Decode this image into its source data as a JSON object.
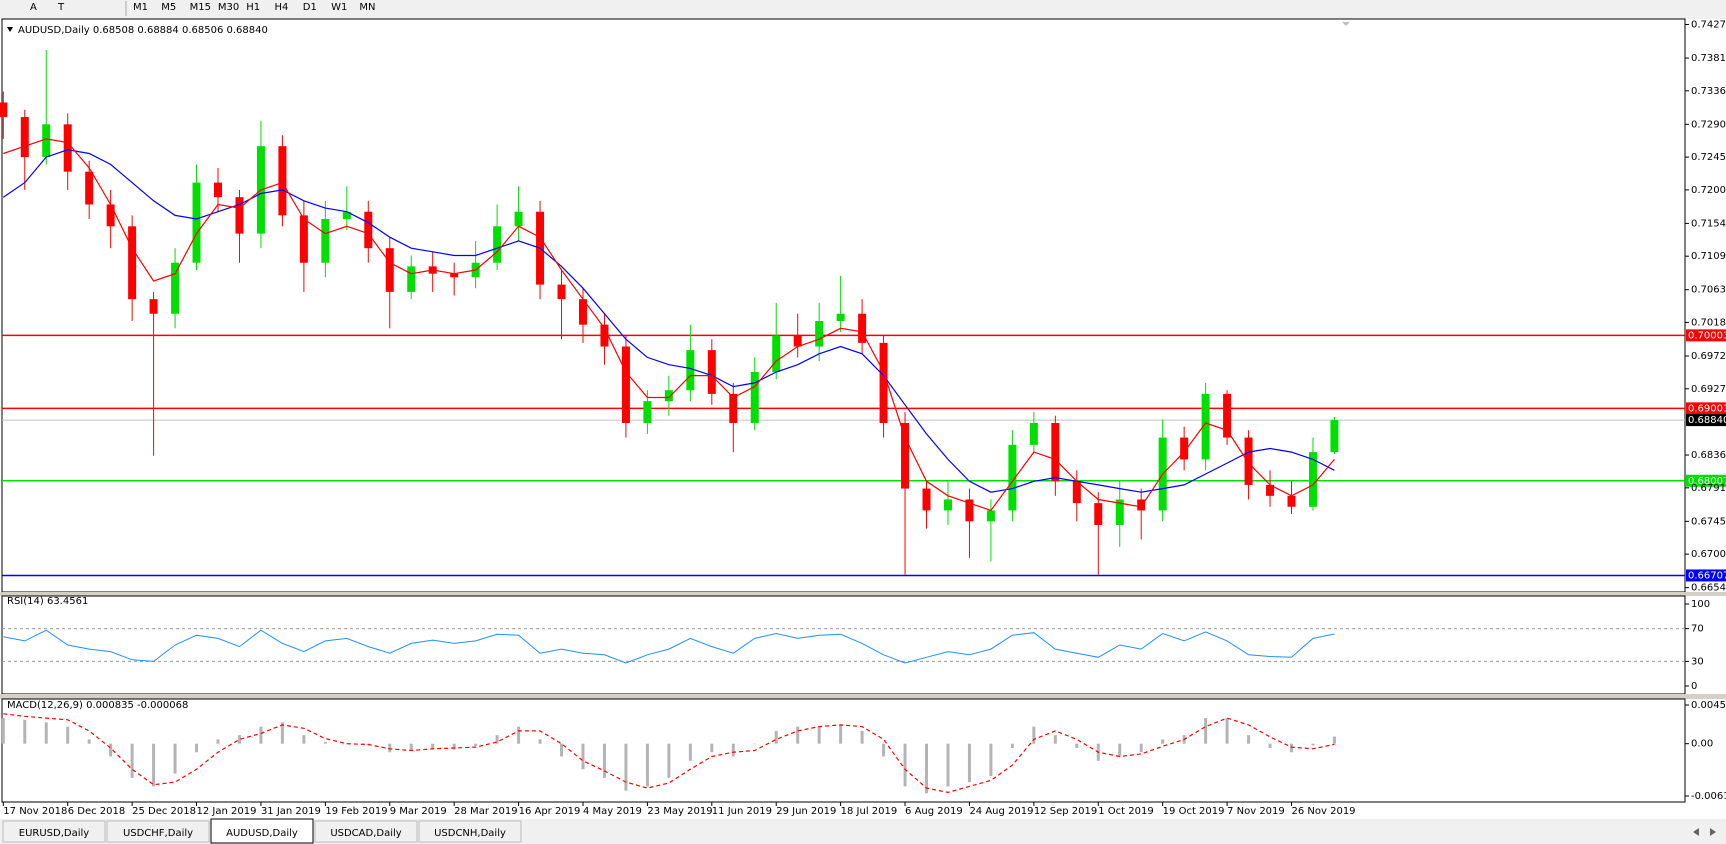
{
  "toolbar": {
    "tools": [
      "A",
      "T"
    ],
    "timeframes": [
      "M1",
      "M5",
      "M15",
      "M30",
      "H1",
      "H4",
      "D1",
      "W1",
      "MN"
    ]
  },
  "tabs": [
    "EURUSD,Daily",
    "USDCHF,Daily",
    "AUDUSD,Daily",
    "USDCAD,Daily",
    "USDCNH,Daily"
  ],
  "active_tab": 2,
  "chart_data": [
    {
      "type": "candlestick",
      "title": "AUDUSD,Daily  0.68508 0.68884 0.68506 0.68840",
      "categories": [
        "17 Nov 2018",
        null,
        null,
        "6 Dec 2018",
        null,
        null,
        "25 Dec 2018",
        null,
        null,
        "12 Jan 2019",
        null,
        null,
        "31 Jan 2019",
        null,
        null,
        "19 Feb 2019",
        null,
        null,
        "9 Mar 2019",
        null,
        null,
        "28 Mar 2019",
        null,
        null,
        "16 Apr 2019",
        null,
        null,
        "4 May 2019",
        null,
        null,
        "23 May 2019",
        null,
        null,
        "11 Jun 2019",
        null,
        null,
        "29 Jun 2019",
        null,
        null,
        "18 Jul 2019",
        null,
        null,
        "6 Aug 2019",
        null,
        null,
        "24 Aug 2019",
        null,
        null,
        "12 Sep 2019",
        null,
        null,
        "1 Oct 2019",
        null,
        null,
        "19 Oct 2019",
        null,
        null,
        "7 Nov 2019",
        null,
        null,
        "26 Nov 2019",
        null,
        null
      ],
      "open": [
        0.732,
        0.73,
        0.7245,
        0.729,
        0.7225,
        0.718,
        0.715,
        0.705,
        0.703,
        0.71,
        0.721,
        0.719,
        0.714,
        0.726,
        0.7165,
        0.71,
        0.716,
        0.717,
        0.712,
        0.706,
        0.7095,
        0.7085,
        0.708,
        0.71,
        0.715,
        0.717,
        0.707,
        0.705,
        0.7015,
        0.6985,
        0.688,
        0.691,
        0.6925,
        0.698,
        0.692,
        0.688,
        0.695,
        0.7,
        0.6985,
        0.702,
        0.703,
        0.699,
        0.688,
        0.679,
        0.676,
        0.6775,
        0.6745,
        0.676,
        0.685,
        0.688,
        0.68,
        0.677,
        0.674,
        0.6775,
        0.676,
        0.686,
        0.683,
        0.692,
        0.686,
        0.6795,
        0.678,
        0.6765,
        0.684
      ],
      "high": [
        0.7335,
        0.731,
        0.7392,
        0.7305,
        0.724,
        0.72,
        0.7165,
        0.706,
        0.712,
        0.7235,
        0.723,
        0.72,
        0.7295,
        0.7275,
        0.7185,
        0.7185,
        0.7205,
        0.7185,
        0.7135,
        0.711,
        0.7115,
        0.71,
        0.713,
        0.718,
        0.7205,
        0.7185,
        0.709,
        0.7065,
        0.703,
        0.7,
        0.6925,
        0.6945,
        0.7015,
        0.6995,
        0.6935,
        0.697,
        0.7045,
        0.703,
        0.7045,
        0.7082,
        0.705,
        0.7,
        0.6895,
        0.68,
        0.68,
        0.679,
        0.6775,
        0.687,
        0.6895,
        0.689,
        0.6815,
        0.6785,
        0.68,
        0.679,
        0.6885,
        0.6875,
        0.6935,
        0.6925,
        0.687,
        0.6815,
        0.68,
        0.686,
        0.68884
      ],
      "low": [
        0.727,
        0.72,
        0.7235,
        0.72,
        0.716,
        0.712,
        0.702,
        0.6835,
        0.701,
        0.709,
        0.717,
        0.71,
        0.712,
        0.715,
        0.706,
        0.708,
        0.7145,
        0.71,
        0.701,
        0.705,
        0.706,
        0.7055,
        0.7065,
        0.709,
        0.713,
        0.705,
        0.6995,
        0.699,
        0.696,
        0.686,
        0.6865,
        0.689,
        0.691,
        0.6905,
        0.684,
        0.687,
        0.694,
        0.697,
        0.6965,
        0.7005,
        0.6975,
        0.686,
        0.6672,
        0.6735,
        0.674,
        0.6695,
        0.669,
        0.6745,
        0.684,
        0.678,
        0.6745,
        0.6672,
        0.671,
        0.672,
        0.6745,
        0.6815,
        0.6815,
        0.685,
        0.6775,
        0.6765,
        0.6755,
        0.676,
        0.68375
      ],
      "close": [
        0.73,
        0.7245,
        0.729,
        0.7225,
        0.718,
        0.715,
        0.705,
        0.703,
        0.71,
        0.721,
        0.719,
        0.714,
        0.726,
        0.7165,
        0.71,
        0.716,
        0.717,
        0.712,
        0.706,
        0.7095,
        0.7085,
        0.708,
        0.71,
        0.715,
        0.717,
        0.707,
        0.705,
        0.7015,
        0.6985,
        0.688,
        0.691,
        0.6925,
        0.698,
        0.692,
        0.688,
        0.695,
        0.7,
        0.6985,
        0.702,
        0.703,
        0.699,
        0.688,
        0.679,
        0.676,
        0.6775,
        0.6745,
        0.676,
        0.685,
        0.688,
        0.68,
        0.677,
        0.674,
        0.6775,
        0.676,
        0.686,
        0.683,
        0.692,
        0.686,
        0.6795,
        0.678,
        0.6765,
        0.684,
        0.6884
      ],
      "up_color": "#00e000",
      "down_color": "#ff0000",
      "overlays": [
        {
          "color": "#0000ff",
          "values": [
            0.719,
            0.721,
            0.7245,
            0.7255,
            0.725,
            0.7235,
            0.721,
            0.7185,
            0.7165,
            0.716,
            0.717,
            0.718,
            0.7195,
            0.72,
            0.7185,
            0.7175,
            0.717,
            0.7155,
            0.7135,
            0.712,
            0.7115,
            0.711,
            0.711,
            0.712,
            0.713,
            0.712,
            0.7095,
            0.7065,
            0.703,
            0.6995,
            0.697,
            0.696,
            0.6955,
            0.6945,
            0.693,
            0.6935,
            0.695,
            0.696,
            0.6975,
            0.6985,
            0.6975,
            0.6945,
            0.6905,
            0.6865,
            0.683,
            0.68,
            0.6785,
            0.679,
            0.68,
            0.6805,
            0.68,
            0.6795,
            0.679,
            0.6785,
            0.679,
            0.6795,
            0.681,
            0.6825,
            0.684,
            0.6845,
            0.684,
            0.683,
            0.6815
          ]
        },
        {
          "color": "#ff0000",
          "values": [
            0.725,
            0.726,
            0.727,
            0.7265,
            0.723,
            0.718,
            0.712,
            0.7075,
            0.7085,
            0.714,
            0.718,
            0.7175,
            0.72,
            0.721,
            0.716,
            0.714,
            0.715,
            0.714,
            0.71,
            0.7085,
            0.709,
            0.7085,
            0.709,
            0.7115,
            0.715,
            0.7135,
            0.709,
            0.705,
            0.701,
            0.695,
            0.6915,
            0.6915,
            0.6945,
            0.6945,
            0.6915,
            0.693,
            0.6965,
            0.6985,
            0.6995,
            0.701,
            0.7005,
            0.695,
            0.686,
            0.68,
            0.678,
            0.677,
            0.676,
            0.68,
            0.684,
            0.683,
            0.68,
            0.6775,
            0.677,
            0.6765,
            0.681,
            0.684,
            0.688,
            0.687,
            0.6825,
            0.6795,
            0.678,
            0.6795,
            0.683
          ]
        }
      ],
      "levels": [
        {
          "value": 0.70003,
          "color": "#ff0000"
        },
        {
          "value": 0.69001,
          "color": "#ff0000"
        },
        {
          "value": 0.68007,
          "color": "#00e000"
        },
        {
          "value": 0.66707,
          "color": "#0000ff"
        }
      ],
      "current_price": {
        "value": 0.6884,
        "label": "0.68840"
      },
      "ylim": [
        0.6648,
        0.74346
      ],
      "yticks": [
        {
          "value": 0.7427,
          "label": "0.74270"
        },
        {
          "value": 0.7381,
          "label": "0.73810"
        },
        {
          "value": 0.7336,
          "label": "0.73360"
        },
        {
          "value": 0.729,
          "label": "0.72900"
        },
        {
          "value": 0.7245,
          "label": "0.72450"
        },
        {
          "value": 0.72,
          "label": "0.72000"
        },
        {
          "value": 0.7154,
          "label": "0.71540"
        },
        {
          "value": 0.7109,
          "label": "0.71090"
        },
        {
          "value": 0.7063,
          "label": "0.70630"
        },
        {
          "value": 0.7018,
          "label": "0.70180"
        },
        {
          "value": 0.6972,
          "label": "0.69720"
        },
        {
          "value": 0.6927,
          "label": "0.69270"
        },
        {
          "value": 0.6836,
          "label": "0.68360"
        },
        {
          "value": 0.6791,
          "label": "0.67910"
        },
        {
          "value": 0.6745,
          "label": "0.67450"
        },
        {
          "value": 0.67,
          "label": "0.67000"
        },
        {
          "value": 0.6654,
          "label": "0.66540"
        }
      ]
    },
    {
      "type": "line",
      "title": "RSI(14) 63.4561",
      "color": "#1e90ff",
      "values": [
        60,
        55,
        68,
        50,
        45,
        42,
        32,
        30,
        50,
        62,
        58,
        48,
        68,
        52,
        42,
        55,
        58,
        48,
        40,
        52,
        56,
        52,
        55,
        63,
        62,
        40,
        45,
        40,
        38,
        28,
        38,
        45,
        58,
        48,
        40,
        58,
        64,
        58,
        62,
        63,
        52,
        38,
        28,
        35,
        42,
        38,
        45,
        62,
        65,
        45,
        40,
        35,
        50,
        45,
        64,
        55,
        66,
        55,
        38,
        36,
        35,
        58,
        63.4561
      ],
      "levels": [
        70,
        30
      ],
      "ylim": [
        0,
        100
      ],
      "yticks": [
        100,
        70,
        30,
        0
      ]
    },
    {
      "type": "bar",
      "title": "MACD(12,26,9) 0.000835 -0.000068",
      "series": [
        {
          "color": "#b4b4b4",
          "values": [
            0.003,
            0.0028,
            0.0025,
            0.002,
            0.0005,
            -0.0015,
            -0.004,
            -0.005,
            -0.0035,
            -0.001,
            0.0005,
            0.001,
            0.002,
            0.0025,
            0.001,
            0.0002,
            0,
            -0.0002,
            -0.001,
            -0.0008,
            -0.0006,
            -0.0007,
            -0.0003,
            0.001,
            0.002,
            0.0005,
            -0.0015,
            -0.003,
            -0.004,
            -0.0055,
            -0.005,
            -0.004,
            -0.002,
            -0.001,
            -0.0015,
            0,
            0.0015,
            0.002,
            0.002,
            0.0022,
            0.0015,
            -0.0015,
            -0.005,
            -0.0058,
            -0.005,
            -0.0045,
            -0.0038,
            -0.0005,
            0.002,
            0.001,
            -0.0005,
            -0.002,
            -0.0015,
            -0.001,
            0.0005,
            0.001,
            0.003,
            0.003,
            0.001,
            -0.0005,
            -0.001,
            -0.0002,
            0.000835
          ]
        },
        {
          "color": "#ff0000",
          "type": "line",
          "dashed": true,
          "values": [
            0.0035,
            0.0032,
            0.003,
            0.0028,
            0.0015,
            -0.0005,
            -0.003,
            -0.0048,
            -0.0045,
            -0.003,
            -0.001,
            0.0005,
            0.0012,
            0.0022,
            0.0018,
            0.0006,
            0,
            -0.0001,
            -0.0006,
            -0.0008,
            -0.0006,
            -0.0005,
            -0.0004,
            0.0002,
            0.0015,
            0.0015,
            0,
            -0.002,
            -0.0032,
            -0.0045,
            -0.0052,
            -0.0046,
            -0.003,
            -0.0015,
            -0.001,
            -0.0008,
            0.0005,
            0.0015,
            0.002,
            0.0022,
            0.002,
            0.0005,
            -0.003,
            -0.0052,
            -0.0057,
            -0.005,
            -0.0043,
            -0.0025,
            0.0005,
            0.0015,
            0.0005,
            -0.001,
            -0.0015,
            -0.0012,
            -0.0003,
            0.0005,
            0.002,
            0.003,
            0.0022,
            0.0008,
            -0.0004,
            -0.0006,
            -6.8e-05
          ]
        }
      ],
      "ylim": [
        -0.006122,
        0.004528
      ],
      "yticks": [
        0.004528,
        {
          "value": 0,
          "label": "0.00"
        },
        -0.006122
      ]
    }
  ]
}
